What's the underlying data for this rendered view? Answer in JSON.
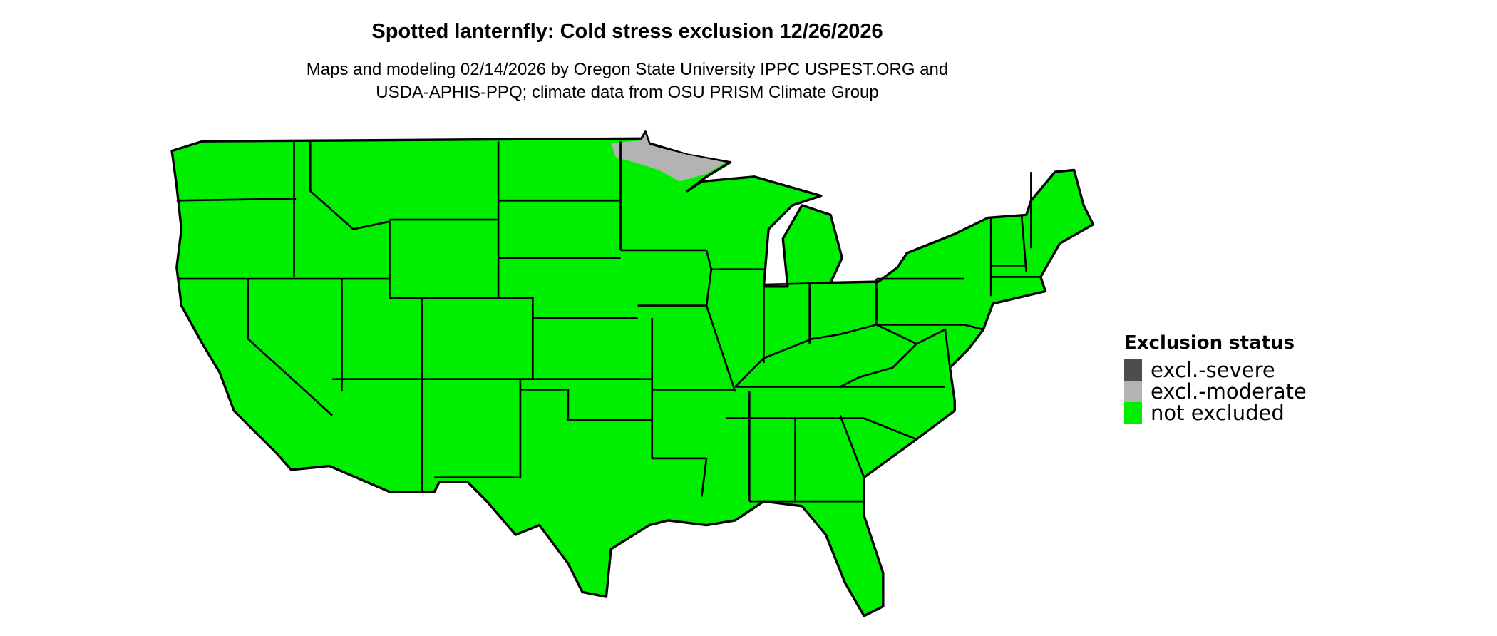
{
  "title": "Spotted lanternfly: Cold stress exclusion 12/26/2026",
  "subtitle_line1": "Maps and modeling 02/14/2026 by Oregon State University IPPC USPEST.ORG and",
  "subtitle_line2": "USDA-APHIS-PPQ; climate data from OSU PRISM Climate Group",
  "legend": {
    "title": "Exclusion status",
    "items": [
      {
        "label": "excl.-severe",
        "color": "#4d4d4d"
      },
      {
        "label": "excl.-moderate",
        "color": "#b3b3b3"
      },
      {
        "label": "not excluded",
        "color": "#00ee00"
      }
    ]
  },
  "map": {
    "region": "contiguous United States with state borders",
    "dominant_status": "not excluded",
    "moderate_exclusion_area": "northeastern Minnesota (Arrowhead)",
    "colors": {
      "not_excluded": "#00ee00",
      "moderate": "#b3b3b3",
      "border": "#000000"
    }
  }
}
